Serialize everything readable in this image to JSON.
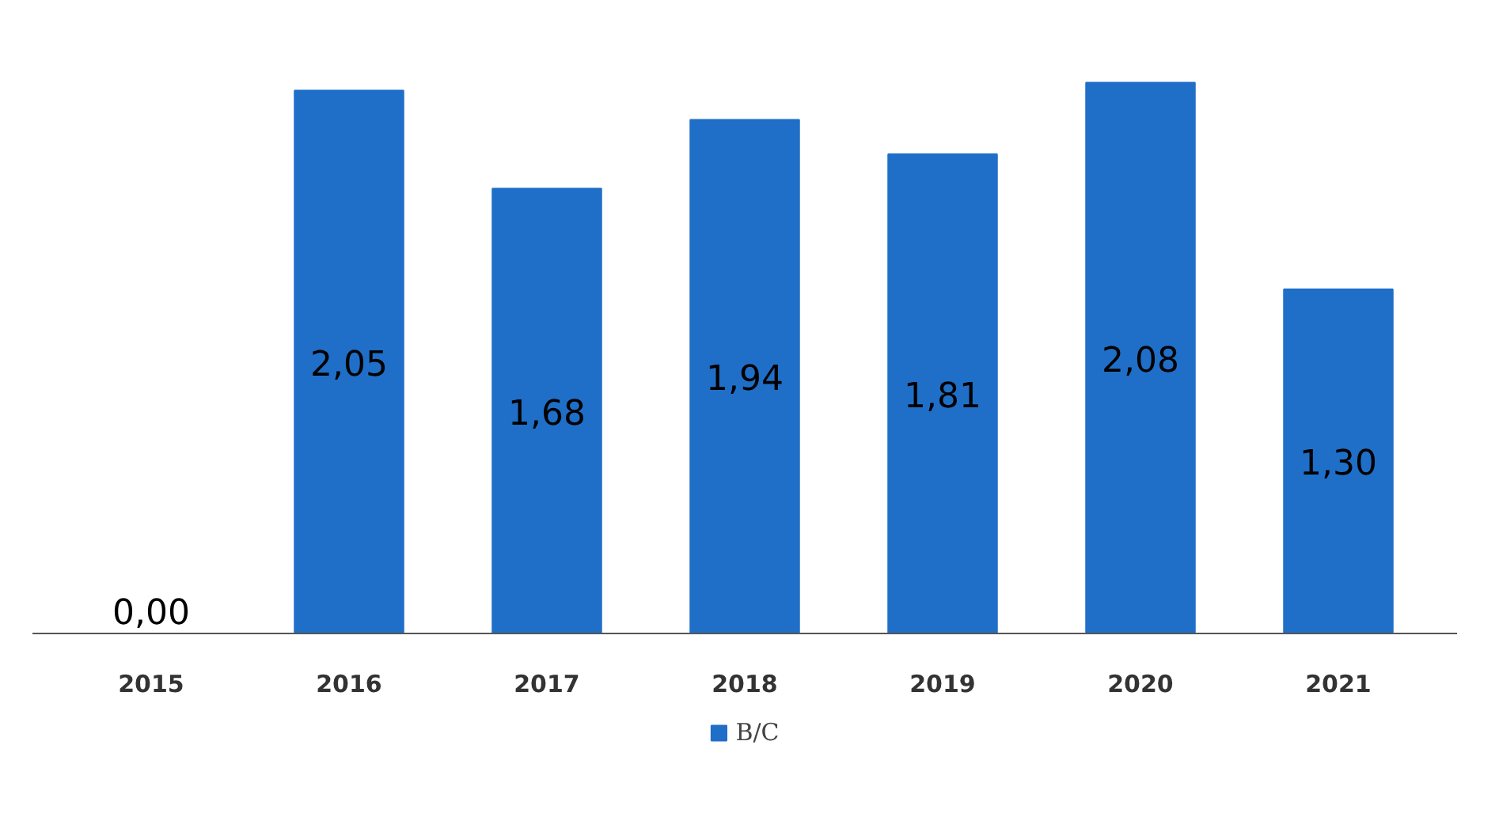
{
  "chart_data": {
    "type": "bar",
    "categories": [
      "2015",
      "2016",
      "2017",
      "2018",
      "2019",
      "2020",
      "2021"
    ],
    "series": [
      {
        "name": "B/C",
        "color": "#1f6fc8",
        "values": [
          0.0,
          2.05,
          1.68,
          1.94,
          1.81,
          2.08,
          1.3
        ],
        "value_labels": [
          "0,00",
          "2,05",
          "1,68",
          "1,94",
          "1,81",
          "2,08",
          "1,30"
        ]
      }
    ],
    "legend": "bottom"
  }
}
